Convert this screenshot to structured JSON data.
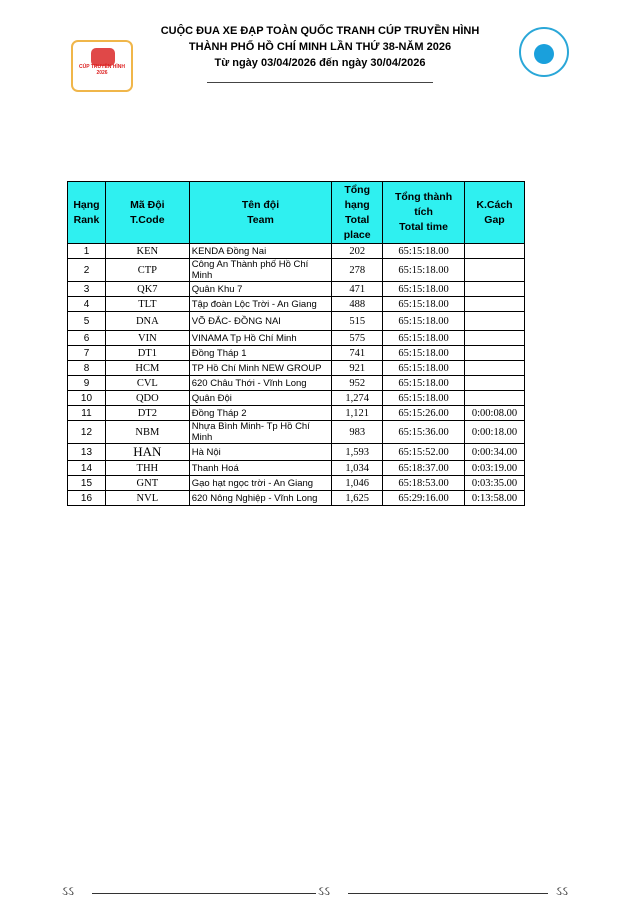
{
  "header": {
    "line1": "CUỘC ĐUA XE ĐẠP TOÀN QUỐC TRANH CÚP TRUYỀN HÌNH",
    "line2": "THÀNH PHỐ HỒ CHÍ MINH LẦN THỨ 38-NĂM 2026",
    "line3": "Từ ngày 03/04/2026 đến ngày 30/04/2026"
  },
  "logos": {
    "left": "CÚP TRUYỀN HÌNH 2026 HTV TÔN ĐÔNG Á",
    "right": "VCF"
  },
  "columns": [
    [
      "Hạng",
      "Rank"
    ],
    [
      "Mã Đội",
      "T.Code"
    ],
    [
      "Tên đội",
      "Team"
    ],
    [
      "Tổng",
      "hạng",
      "Total",
      "place"
    ],
    [
      "Tổng thành tích",
      "Total time"
    ],
    [
      "K.Cách",
      "Gap"
    ]
  ],
  "rows": [
    [
      "1",
      "KEN",
      " KENDA Đồng Nai",
      "202",
      "65:15:18.00",
      ""
    ],
    [
      "2",
      "CTP",
      "Công An Thành phố Hồ Chí Minh",
      "278",
      "65:15:18.00",
      ""
    ],
    [
      "3",
      "QK7",
      "Quân Khu 7",
      "471",
      "65:15:18.00",
      ""
    ],
    [
      "4",
      "TLT",
      "Tập đoàn Lộc Trời - An Giang",
      "488",
      "65:15:18.00",
      ""
    ],
    [
      "5",
      "DNA",
      "VÕ ĐẮC- ĐỒNG NAI",
      "515",
      "65:15:18.00",
      ""
    ],
    [
      "6",
      "VIN",
      "VINAMA Tp Hồ Chí Minh",
      "575",
      "65:15:18.00",
      ""
    ],
    [
      "7",
      "DT1",
      "Đồng Tháp 1",
      "741",
      "65:15:18.00",
      ""
    ],
    [
      "8",
      "HCM",
      "TP Hồ Chí Minh NEW GROUP",
      "921",
      "65:15:18.00",
      ""
    ],
    [
      "9",
      "CVL",
      "620 Châu Thới - Vĩnh Long",
      "952",
      "65:15:18.00",
      ""
    ],
    [
      "10",
      "QDO",
      "Quân Đội",
      "1,274",
      "65:15:18.00",
      ""
    ],
    [
      "11",
      "DT2",
      "Đồng Tháp 2",
      "1,121",
      "65:15:26.00",
      "0:00:08.00"
    ],
    [
      "12",
      "NBM",
      "Nhựa Bình Minh- Tp Hồ Chí Minh",
      "983",
      "65:15:36.00",
      "0:00:18.00"
    ],
    [
      "13",
      "HAN",
      "Hà Nội",
      "1,593",
      "65:15:52.00",
      "0:00:34.00"
    ],
    [
      "14",
      "THH",
      "Thanh Hoá",
      "1,034",
      "65:18:37.00",
      "0:03:19.00"
    ],
    [
      "15",
      "GNT",
      "Gạo hạt ngọc trời - An Giang",
      "1,046",
      "65:18:53.00",
      "0:03:35.00"
    ],
    [
      "16",
      "NVL",
      "620 Nông Nghiệp - Vĩnh Long",
      "1,625",
      "65:29:16.00",
      "0:13:58.00"
    ]
  ],
  "colors": {
    "header_bg": "#2ff0f0"
  }
}
